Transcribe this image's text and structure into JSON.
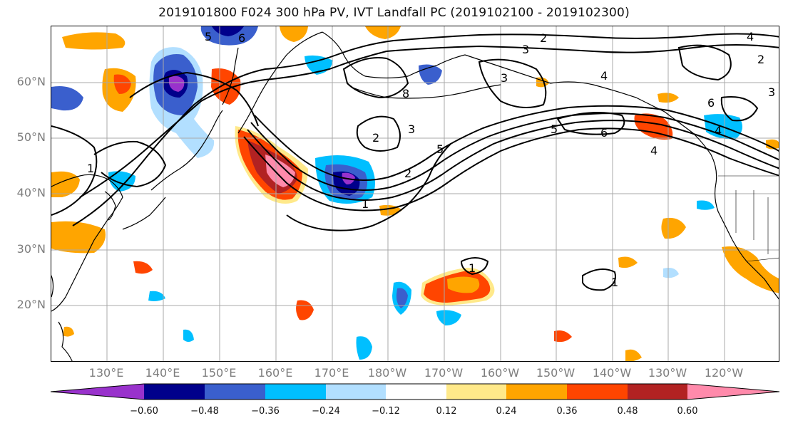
{
  "title": "2019101800 F024 300 hPa PV, IVT Landfall PC (2019102100 - 2019102300)",
  "lat_labels": [
    "60°N",
    "50°N",
    "40°N",
    "30°N",
    "20°N"
  ],
  "lon_labels": [
    "130°E",
    "140°E",
    "150°E",
    "160°E",
    "170°E",
    "180°W",
    "170°W",
    "160°W",
    "150°W",
    "140°W",
    "130°W",
    "120°W"
  ],
  "colorbar": {
    "ticks": [
      "−0.60",
      "−0.48",
      "−0.36",
      "−0.24",
      "−0.12",
      "0.12",
      "0.24",
      "0.36",
      "0.48",
      "0.60"
    ],
    "colors": [
      "#9932cc",
      "#00008b",
      "#3a5fcd",
      "#00bfff",
      "#b2dfff",
      "#ffffff",
      "#ffe98a",
      "#ffa500",
      "#ff4500",
      "#b22222",
      "#ff8aab"
    ]
  },
  "contour_labels": [
    "2",
    "3",
    "4",
    "5",
    "6",
    "1",
    "2",
    "3",
    "4",
    "5",
    "6",
    "8",
    "4",
    "3",
    "2",
    "1",
    "1",
    "4",
    "6",
    "5",
    "2",
    "3",
    "1"
  ]
}
